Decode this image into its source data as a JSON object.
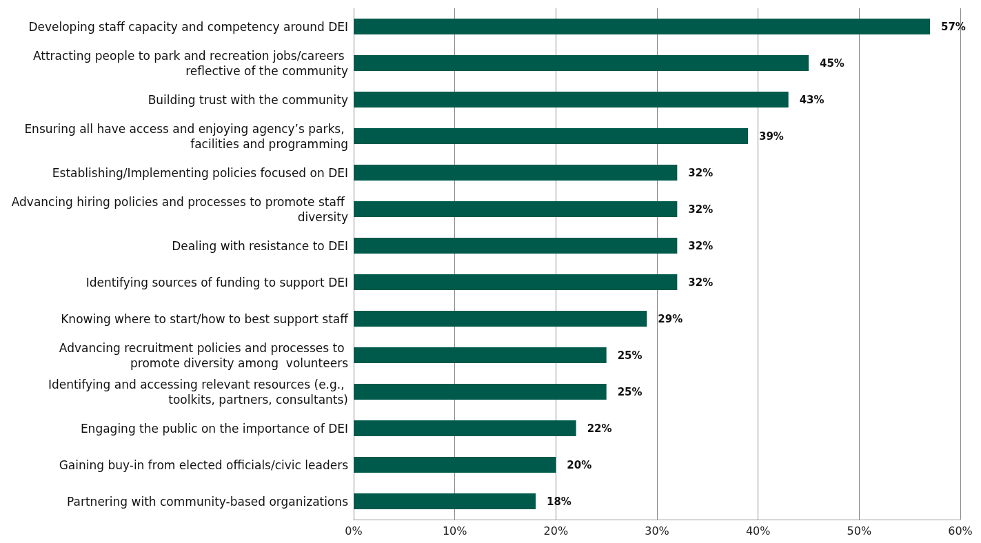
{
  "chart_data": {
    "type": "bar",
    "orientation": "horizontal",
    "categories": [
      "Developing staff capacity and competency around DEI",
      "Attracting people to park and recreation jobs/careers reflective of the community",
      "Building trust with the community",
      "Ensuring all have access and enjoying agency’s parks, facilities and programming",
      "Establishing/Implementing policies focused on DEI",
      "Advancing hiring policies and processes to promote staff diversity",
      "Dealing with resistance to DEI",
      "Identifying sources of funding to support DEI",
      "Knowing where to start/how to best support staff",
      "Advancing recruitment policies and processes to promote diversity among  volunteers",
      "Identifying and accessing relevant resources (e.g., toolkits, partners, consultants)",
      "Engaging the public on the importance of DEI",
      "Gaining buy-in from elected officials/civic leaders",
      "Partnering with community-based organizations"
    ],
    "values": [
      57,
      45,
      43,
      39,
      32,
      32,
      32,
      32,
      29,
      25,
      25,
      22,
      20,
      18
    ],
    "value_labels": [
      "57%",
      "45%",
      "43%",
      "39%",
      "32%",
      "32%",
      "32%",
      "32%",
      "29%",
      "25%",
      "25%",
      "22%",
      "20%",
      "18%"
    ],
    "color": "#005a4b",
    "xlim": [
      0,
      60
    ],
    "xticks": [
      {
        "value": 0,
        "label": "0%"
      },
      {
        "value": 10,
        "label": "10%"
      },
      {
        "value": 20,
        "label": "20%"
      },
      {
        "value": 30,
        "label": "30%"
      },
      {
        "value": 40,
        "label": "40%"
      },
      {
        "value": 50,
        "label": "50%"
      },
      {
        "value": 60,
        "label": "60%"
      }
    ],
    "grid": "x"
  }
}
